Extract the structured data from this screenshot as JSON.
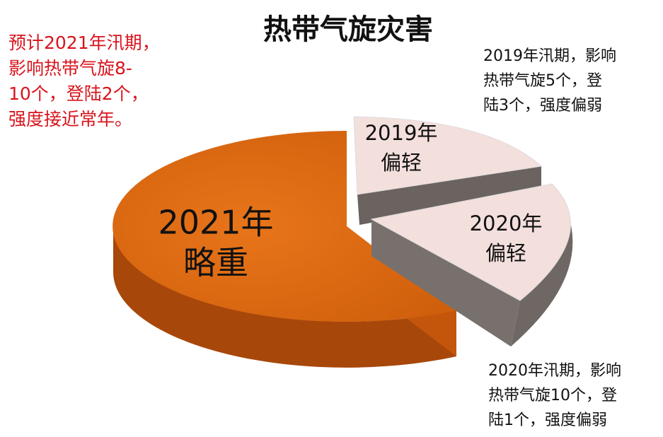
{
  "title": "热带气旋灾害",
  "forecast_note": [
    "预计2021年汛期，",
    "影响热带气旋8-",
    "10个，登陆2个，",
    "强度接近常年。"
  ],
  "slices": [
    {
      "lines": [
        "2021年",
        "略重"
      ]
    },
    {
      "lines": [
        "2019年",
        "偏轻"
      ]
    },
    {
      "lines": [
        "2020年",
        "偏轻"
      ]
    }
  ],
  "callouts": [
    {
      "lines": [
        "2019年汛期，影响",
        "热带气旋5个，登",
        "陆3个，强度偏弱"
      ]
    },
    {
      "lines": [
        "2020年汛期，影响",
        "热带气旋10个，登",
        "陆1个，强度偏弱"
      ]
    }
  ]
}
